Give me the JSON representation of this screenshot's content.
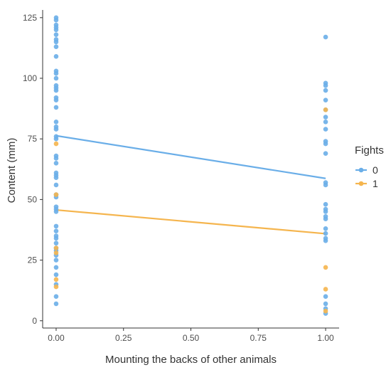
{
  "chart_data": {
    "type": "scatter",
    "xlabel": "Mounting the backs of other animals",
    "ylabel": "Content (mm)",
    "xlim": [
      -0.05,
      1.05
    ],
    "ylim": [
      -3,
      127
    ],
    "x_ticks": [
      "0.00",
      "0.25",
      "0.50",
      "0.75",
      "1.00"
    ],
    "y_ticks": [
      "0",
      "25",
      "50",
      "75",
      "100",
      "125"
    ],
    "grid": false,
    "legend": {
      "title": "Fights",
      "placement": "right",
      "entries": [
        "0",
        "1"
      ]
    },
    "series": [
      {
        "name": "0",
        "color": "#6aaee8",
        "trend": [
          [
            0,
            76.3
          ],
          [
            1,
            58.7
          ]
        ],
        "points": [
          [
            0,
            125
          ],
          [
            0,
            124
          ],
          [
            0,
            122
          ],
          [
            0,
            121
          ],
          [
            0,
            120
          ],
          [
            0,
            118
          ],
          [
            0,
            116
          ],
          [
            0,
            115
          ],
          [
            0,
            113
          ],
          [
            0,
            109
          ],
          [
            0,
            103
          ],
          [
            0,
            102
          ],
          [
            0,
            100
          ],
          [
            0,
            97
          ],
          [
            0,
            96
          ],
          [
            0,
            95
          ],
          [
            0,
            92
          ],
          [
            0,
            91
          ],
          [
            0,
            88
          ],
          [
            0,
            82
          ],
          [
            0,
            80
          ],
          [
            0,
            79
          ],
          [
            0,
            76
          ],
          [
            0,
            75
          ],
          [
            0,
            68
          ],
          [
            0,
            67
          ],
          [
            0,
            65
          ],
          [
            0,
            61
          ],
          [
            0,
            60
          ],
          [
            0,
            59
          ],
          [
            0,
            56
          ],
          [
            0,
            52
          ],
          [
            0,
            51
          ],
          [
            0,
            47
          ],
          [
            0,
            46
          ],
          [
            0,
            45
          ],
          [
            0,
            39
          ],
          [
            0,
            37
          ],
          [
            0,
            35
          ],
          [
            0,
            34
          ],
          [
            0,
            32
          ],
          [
            0,
            30
          ],
          [
            0,
            29
          ],
          [
            0,
            27
          ],
          [
            0,
            25
          ],
          [
            0,
            22
          ],
          [
            0,
            19
          ],
          [
            0,
            15
          ],
          [
            0,
            10
          ],
          [
            0,
            7
          ],
          [
            1,
            117
          ],
          [
            1,
            98
          ],
          [
            1,
            97
          ],
          [
            1,
            95
          ],
          [
            1,
            91
          ],
          [
            1,
            87
          ],
          [
            1,
            84
          ],
          [
            1,
            82
          ],
          [
            1,
            79
          ],
          [
            1,
            74
          ],
          [
            1,
            73
          ],
          [
            1,
            69
          ],
          [
            1,
            57
          ],
          [
            1,
            56
          ],
          [
            1,
            48
          ],
          [
            1,
            46
          ],
          [
            1,
            45
          ],
          [
            1,
            43
          ],
          [
            1,
            42
          ],
          [
            1,
            38
          ],
          [
            1,
            36
          ],
          [
            1,
            34
          ],
          [
            1,
            33
          ],
          [
            1,
            10
          ],
          [
            1,
            7
          ],
          [
            1,
            5
          ],
          [
            1,
            3
          ]
        ]
      },
      {
        "name": "1",
        "color": "#f5b54e",
        "trend": [
          [
            0,
            45.7
          ],
          [
            1,
            35.9
          ]
        ],
        "points": [
          [
            0,
            73
          ],
          [
            0,
            52
          ],
          [
            0,
            30
          ],
          [
            0,
            28
          ],
          [
            0,
            17
          ],
          [
            0,
            14
          ],
          [
            1,
            87
          ],
          [
            1,
            22
          ],
          [
            1,
            13
          ],
          [
            1,
            4
          ]
        ]
      }
    ]
  }
}
